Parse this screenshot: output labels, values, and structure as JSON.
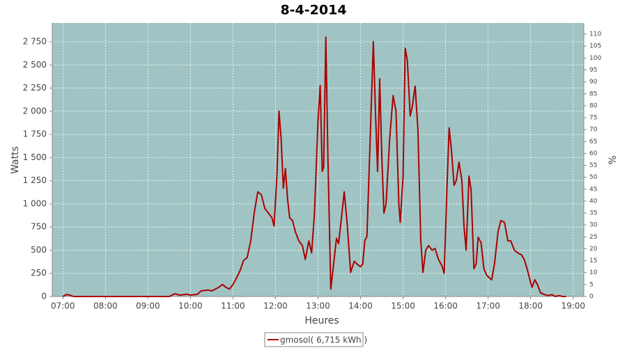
{
  "chart_data": {
    "type": "line",
    "title": "8-4-2014",
    "x_label": "Heures",
    "y_label": "Watts",
    "y2_label": "%",
    "x": [
      "07:00",
      "07:05",
      "07:10",
      "07:15",
      "09:30",
      "09:38",
      "09:45",
      "09:55",
      "10:00",
      "10:10",
      "10:15",
      "10:25",
      "10:30",
      "10:35",
      "10:40",
      "10:45",
      "10:50",
      "10:55",
      "11:00",
      "11:05",
      "11:10",
      "11:15",
      "11:20",
      "11:25",
      "11:30",
      "11:35",
      "11:40",
      "11:45",
      "11:50",
      "11:55",
      "11:58",
      "12:02",
      "12:05",
      "12:08",
      "12:11",
      "12:14",
      "12:17",
      "12:20",
      "12:24",
      "12:28",
      "12:33",
      "12:38",
      "12:42",
      "12:47",
      "12:51",
      "12:55",
      "13:00",
      "13:03",
      "13:06",
      "13:08",
      "13:11",
      "13:14",
      "13:18",
      "13:22",
      "13:26",
      "13:29",
      "13:33",
      "13:37",
      "13:41",
      "13:46",
      "13:51",
      "13:55",
      "14:00",
      "14:03",
      "14:06",
      "14:09",
      "14:14",
      "14:18",
      "14:21",
      "14:24",
      "14:27",
      "14:30",
      "14:33",
      "14:36",
      "14:41",
      "14:46",
      "14:50",
      "14:54",
      "14:56",
      "15:00",
      "15:03",
      "15:06",
      "15:10",
      "15:13",
      "15:17",
      "15:21",
      "15:25",
      "15:28",
      "15:32",
      "15:36",
      "15:41",
      "15:45",
      "15:50",
      "15:55",
      "15:58",
      "16:02",
      "16:05",
      "16:08",
      "16:12",
      "16:15",
      "16:19",
      "16:23",
      "16:26",
      "16:29",
      "16:33",
      "16:36",
      "16:40",
      "16:43",
      "16:46",
      "16:50",
      "16:54",
      "16:58",
      "17:02",
      "17:05",
      "17:09",
      "17:14",
      "17:18",
      "17:23",
      "17:28",
      "17:32",
      "17:37",
      "17:42",
      "17:47",
      "17:51",
      "17:55",
      "18:00",
      "18:02",
      "18:06",
      "18:10",
      "18:14",
      "18:20",
      "18:25",
      "18:30",
      "18:35",
      "18:40",
      "18:45",
      "18:50"
    ],
    "series": [
      {
        "name": "gmosol( 6,715 kWh )",
        "color": "#aa0000",
        "values": [
          0,
          20,
          15,
          0,
          0,
          30,
          15,
          25,
          15,
          25,
          60,
          70,
          60,
          80,
          100,
          130,
          100,
          80,
          130,
          200,
          280,
          390,
          420,
          600,
          900,
          1130,
          1100,
          950,
          900,
          850,
          760,
          1300,
          2000,
          1700,
          1170,
          1380,
          1050,
          850,
          820,
          700,
          600,
          550,
          400,
          600,
          470,
          900,
          1900,
          2280,
          1350,
          1400,
          2800,
          1500,
          80,
          350,
          630,
          570,
          850,
          1130,
          800,
          260,
          380,
          350,
          320,
          350,
          600,
          650,
          1800,
          2750,
          2000,
          1350,
          2350,
          1500,
          900,
          1000,
          1700,
          2170,
          2000,
          1000,
          800,
          1300,
          2680,
          2550,
          1950,
          2050,
          2270,
          1800,
          600,
          260,
          500,
          550,
          500,
          520,
          400,
          330,
          250,
          1200,
          1820,
          1600,
          1200,
          1250,
          1450,
          1250,
          750,
          500,
          1300,
          1150,
          300,
          350,
          640,
          580,
          300,
          230,
          200,
          180,
          350,
          700,
          820,
          800,
          600,
          600,
          500,
          470,
          450,
          400,
          300,
          150,
          100,
          180,
          120,
          40,
          20,
          10,
          20,
          0,
          10,
          0,
          0
        ]
      }
    ],
    "xlim": [
      "06:45",
      "19:15"
    ],
    "xticks": [
      "07:00",
      "08:00",
      "09:00",
      "10:00",
      "11:00",
      "12:00",
      "13:00",
      "14:00",
      "15:00",
      "16:00",
      "17:00",
      "18:00",
      "19:00"
    ],
    "ylim": [
      0,
      2953
    ],
    "yticks": [
      0,
      250,
      500,
      750,
      {
        "value": 1000,
        "label": "1 000"
      },
      {
        "value": 1250,
        "label": "1 250"
      },
      {
        "value": 1500,
        "label": "1 500"
      },
      {
        "value": 1750,
        "label": "1 750"
      },
      {
        "value": 2000,
        "label": "2 000"
      },
      {
        "value": 2250,
        "label": "2 250"
      },
      {
        "value": 2500,
        "label": "2 500"
      },
      {
        "value": 2750,
        "label": "2 750"
      }
    ],
    "y2lim": [
      0,
      114.7
    ],
    "y2ticks": [
      0,
      5,
      10,
      15,
      20,
      25,
      30,
      35,
      40,
      45,
      50,
      55,
      60,
      65,
      70,
      75,
      80,
      85,
      90,
      95,
      100,
      105,
      110
    ],
    "grid": true,
    "legend": "bottom"
  }
}
